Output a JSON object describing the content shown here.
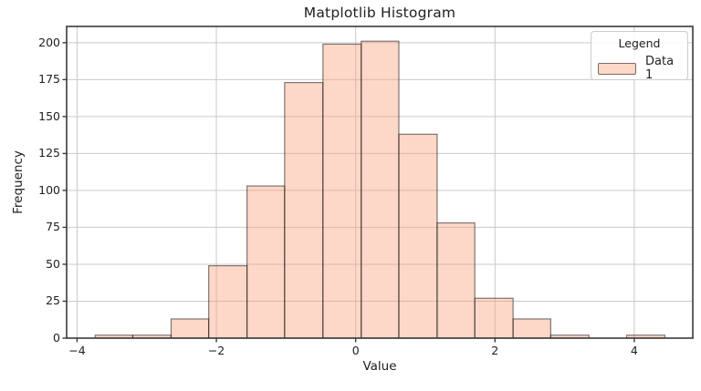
{
  "figure": {
    "title": "Matplotlib Histogram",
    "xlabel": "Value",
    "ylabel": "Frequency"
  },
  "legend": {
    "title": "Legend",
    "entries": [
      {
        "label": "Data 1"
      }
    ]
  },
  "chart_data": {
    "type": "bar",
    "subtype": "histogram",
    "title": "Matplotlib Histogram",
    "xlabel": "Value",
    "ylabel": "Frequency",
    "series": [
      {
        "name": "Data 1",
        "bin_edges": [
          -3.74,
          -3.2,
          -2.65,
          -2.11,
          -1.56,
          -1.02,
          -0.47,
          0.08,
          0.62,
          1.17,
          1.71,
          2.26,
          2.8,
          3.35,
          3.89,
          4.44
        ],
        "counts": [
          2,
          2,
          13,
          49,
          103,
          173,
          199,
          201,
          138,
          78,
          27,
          13,
          2,
          0,
          2
        ]
      }
    ],
    "xlim": [
      -4.15,
      4.84
    ],
    "ylim": [
      0,
      211
    ],
    "xticks": [
      -4,
      -2,
      0,
      2,
      4
    ],
    "yticks": [
      0,
      25,
      50,
      75,
      100,
      125,
      150,
      175,
      200
    ],
    "grid": true,
    "legend_position": "upper right",
    "colors": {
      "bar_fill": "rgba(250,160,122,0.42)",
      "bar_edge": "rgba(0,0,0,0.5)",
      "grid": "#c9c9c9",
      "spine": "#3a3a3a",
      "text": "#202020",
      "legend_border": "#cccccc",
      "legend_bg": "rgba(255,255,255,0.85)"
    }
  }
}
